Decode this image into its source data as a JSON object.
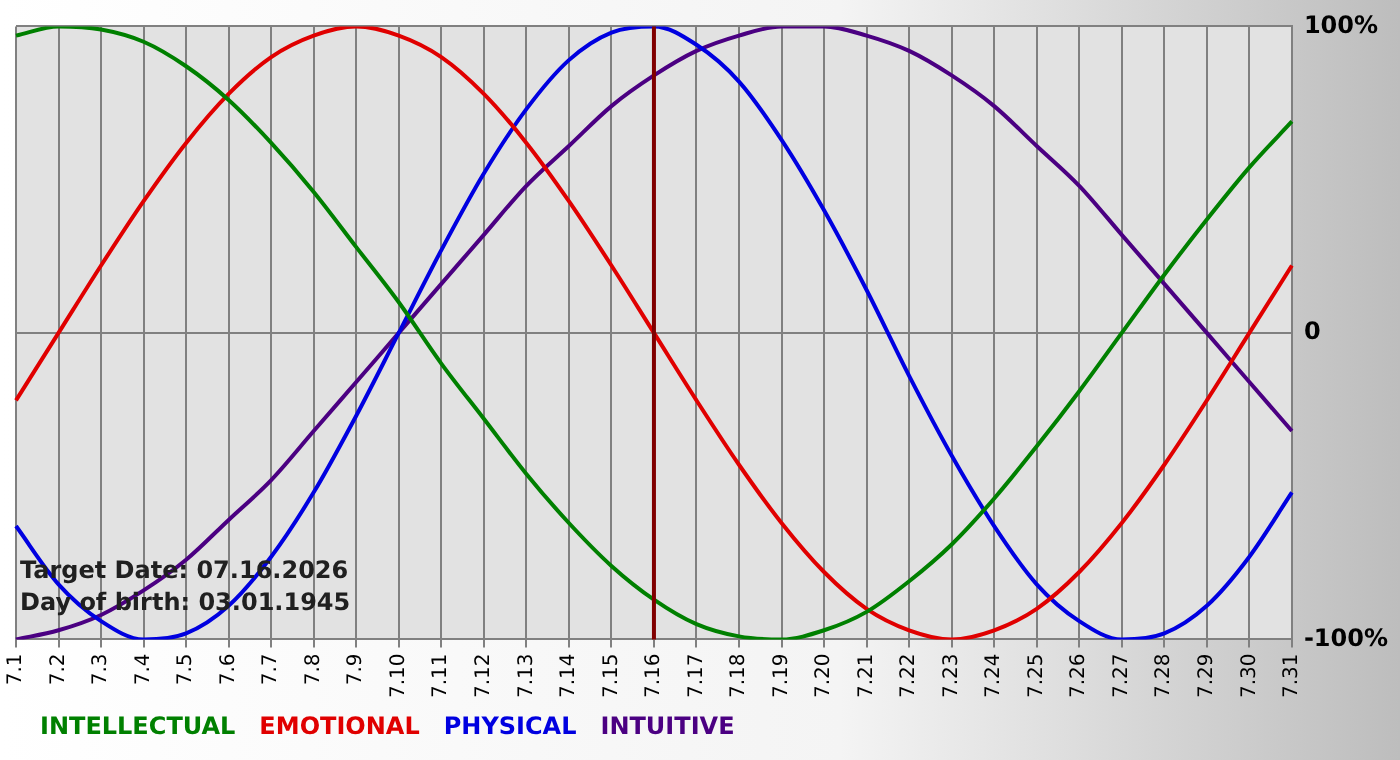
{
  "chart_data": {
    "type": "line",
    "categories": [
      "7.1",
      "7.2",
      "7.3",
      "7.4",
      "7.5",
      "7.6",
      "7.7",
      "7.8",
      "7.9",
      "7.10",
      "7.11",
      "7.12",
      "7.13",
      "7.14",
      "7.15",
      "7.16",
      "7.17",
      "7.18",
      "7.19",
      "7.20",
      "7.21",
      "7.22",
      "7.23",
      "7.24",
      "7.25",
      "7.26",
      "7.27",
      "7.28",
      "7.29",
      "7.30",
      "7.31"
    ],
    "series": [
      {
        "name": "INTELLECTUAL",
        "color": "#008000",
        "values": [
          97,
          100,
          99,
          95,
          87,
          76,
          62,
          46,
          28,
          10,
          -10,
          -28,
          -46,
          -62,
          -76,
          -87,
          -95,
          -99,
          -100,
          -97,
          -91,
          -81,
          -69,
          -54,
          -37,
          -19,
          0,
          19,
          37,
          54,
          69
        ]
      },
      {
        "name": "EMOTIONAL",
        "color": "#e00000",
        "values": [
          -22,
          0,
          22,
          43,
          62,
          78,
          90,
          97,
          100,
          97,
          90,
          78,
          62,
          43,
          22,
          0,
          -22,
          -43,
          -62,
          -78,
          -90,
          -97,
          -100,
          -97,
          -90,
          -78,
          -62,
          -43,
          -22,
          0,
          22
        ]
      },
      {
        "name": "PHYSICAL",
        "color": "#0000e0",
        "values": [
          -63,
          -82,
          -94,
          -100,
          -98,
          -89,
          -73,
          -52,
          -27,
          0,
          27,
          52,
          73,
          89,
          98,
          100,
          94,
          82,
          63,
          40,
          14,
          -14,
          -40,
          -63,
          -82,
          -94,
          -100,
          -98,
          -89,
          -73,
          -52
        ]
      },
      {
        "name": "INTUITIVE",
        "color": "#4b0082",
        "values": [
          -100,
          -97,
          -92,
          -84,
          -74,
          -61,
          -48,
          -32,
          -16,
          0,
          16,
          32,
          48,
          61,
          74,
          84,
          92,
          97,
          100,
          100,
          97,
          92,
          84,
          74,
          61,
          48,
          32,
          16,
          0,
          -16,
          -32
        ]
      }
    ],
    "ylim": [
      -100,
      100
    ],
    "yticks": [
      {
        "value": 100,
        "label": "100%"
      },
      0,
      {
        "value": -100,
        "label": "-100%"
      }
    ],
    "grid": true,
    "legend": "bottom",
    "marker": "none",
    "line_style": "solid",
    "ref_lines": [
      {
        "axis": "x",
        "value": "7.16",
        "color": "#800000"
      }
    ],
    "annotations": [
      "Target Date: 07.16.2026",
      "Day of birth: 03.01.1945"
    ]
  }
}
